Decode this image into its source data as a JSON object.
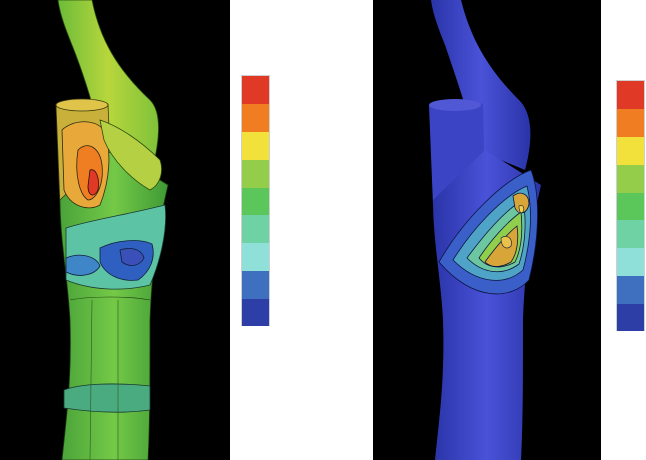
{
  "figure": {
    "left_panel": {
      "description": ""
    },
    "right_panel": {
      "description": ""
    }
  },
  "colors": {
    "background_left": "#000000",
    "background_right": "#000000",
    "scale": [
      "#e03a27",
      "#f07d22",
      "#f2e13a",
      "#94cd4a",
      "#5bc65a",
      "#6fd2a4",
      "#8ee0d8",
      "#3f6fbf",
      "#2d3ea6"
    ]
  },
  "legend_left": {
    "swatch_count": 9
  },
  "legend_right": {
    "swatch_count": 9
  }
}
